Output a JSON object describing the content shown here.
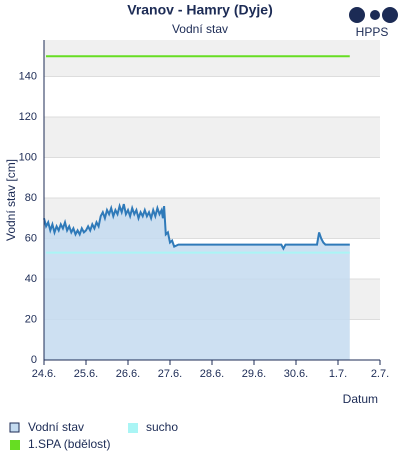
{
  "logo": "HPPS",
  "chart_data": {
    "type": "line",
    "title": "Vranov - Hamry (Dyje)",
    "subtitle": "Vodní stav",
    "y_label": "Vodní stav [cm]",
    "x_label": "Datum",
    "xlim": [
      0,
      8
    ],
    "xticks": [
      {
        "value": 0,
        "label": "24.6."
      },
      {
        "value": 1,
        "label": "25.6."
      },
      {
        "value": 2,
        "label": "26.6."
      },
      {
        "value": 3,
        "label": "27.6."
      },
      {
        "value": 4,
        "label": "28.6."
      },
      {
        "value": 5,
        "label": "29.6."
      },
      {
        "value": 6,
        "label": "30.6."
      },
      {
        "value": 7,
        "label": "1.7."
      },
      {
        "value": 8,
        "label": "2.7."
      }
    ],
    "ylim": [
      0,
      158
    ],
    "yticks": [
      0,
      20,
      40,
      60,
      80,
      100,
      120,
      140
    ],
    "grid": true,
    "x": [
      0,
      0.05,
      0.1,
      0.15,
      0.2,
      0.25,
      0.3,
      0.35,
      0.4,
      0.45,
      0.5,
      0.55,
      0.6,
      0.65,
      0.7,
      0.75,
      0.8,
      0.85,
      0.9,
      0.95,
      1.0,
      1.05,
      1.1,
      1.15,
      1.2,
      1.25,
      1.3,
      1.35,
      1.4,
      1.45,
      1.5,
      1.55,
      1.6,
      1.65,
      1.7,
      1.75,
      1.8,
      1.85,
      1.9,
      1.95,
      2.0,
      2.05,
      2.1,
      2.15,
      2.2,
      2.25,
      2.3,
      2.35,
      2.4,
      2.45,
      2.5,
      2.55,
      2.6,
      2.65,
      2.7,
      2.75,
      2.8,
      2.83,
      2.86,
      2.9,
      2.95,
      3.0,
      3.05,
      3.1,
      3.2,
      3.5,
      3.7,
      3.72,
      4.0,
      5.0,
      5.65,
      5.7,
      5.75,
      6.5,
      6.55,
      6.6,
      6.65,
      6.7,
      7.28
    ],
    "series": [
      {
        "name": "Vodní stav",
        "color": "#2f7ab9",
        "fill": "#c4dbf0",
        "values": [
          70,
          66,
          68,
          64,
          67,
          63,
          66,
          64,
          67,
          65,
          68,
          64,
          66,
          63,
          65,
          62,
          64,
          62,
          65,
          63,
          64,
          66,
          64,
          67,
          65,
          68,
          66,
          71,
          73,
          70,
          74,
          72,
          75,
          71,
          74,
          72,
          76,
          73,
          77,
          72,
          74,
          71,
          75,
          72,
          74,
          70,
          73,
          71,
          74,
          71,
          73,
          70,
          74,
          71,
          75,
          72,
          74,
          70,
          76,
          62,
          63,
          58,
          59,
          56,
          57,
          57,
          57,
          57,
          57,
          57,
          57,
          55,
          57,
          57,
          63,
          60,
          58,
          57,
          57
        ]
      }
    ],
    "thresholds": [
      {
        "name": "sucho",
        "value": 53,
        "color": "#aaf5f5"
      },
      {
        "name": "1.SPA (bdělost)",
        "value": 150,
        "color": "#66dd22"
      }
    ]
  }
}
